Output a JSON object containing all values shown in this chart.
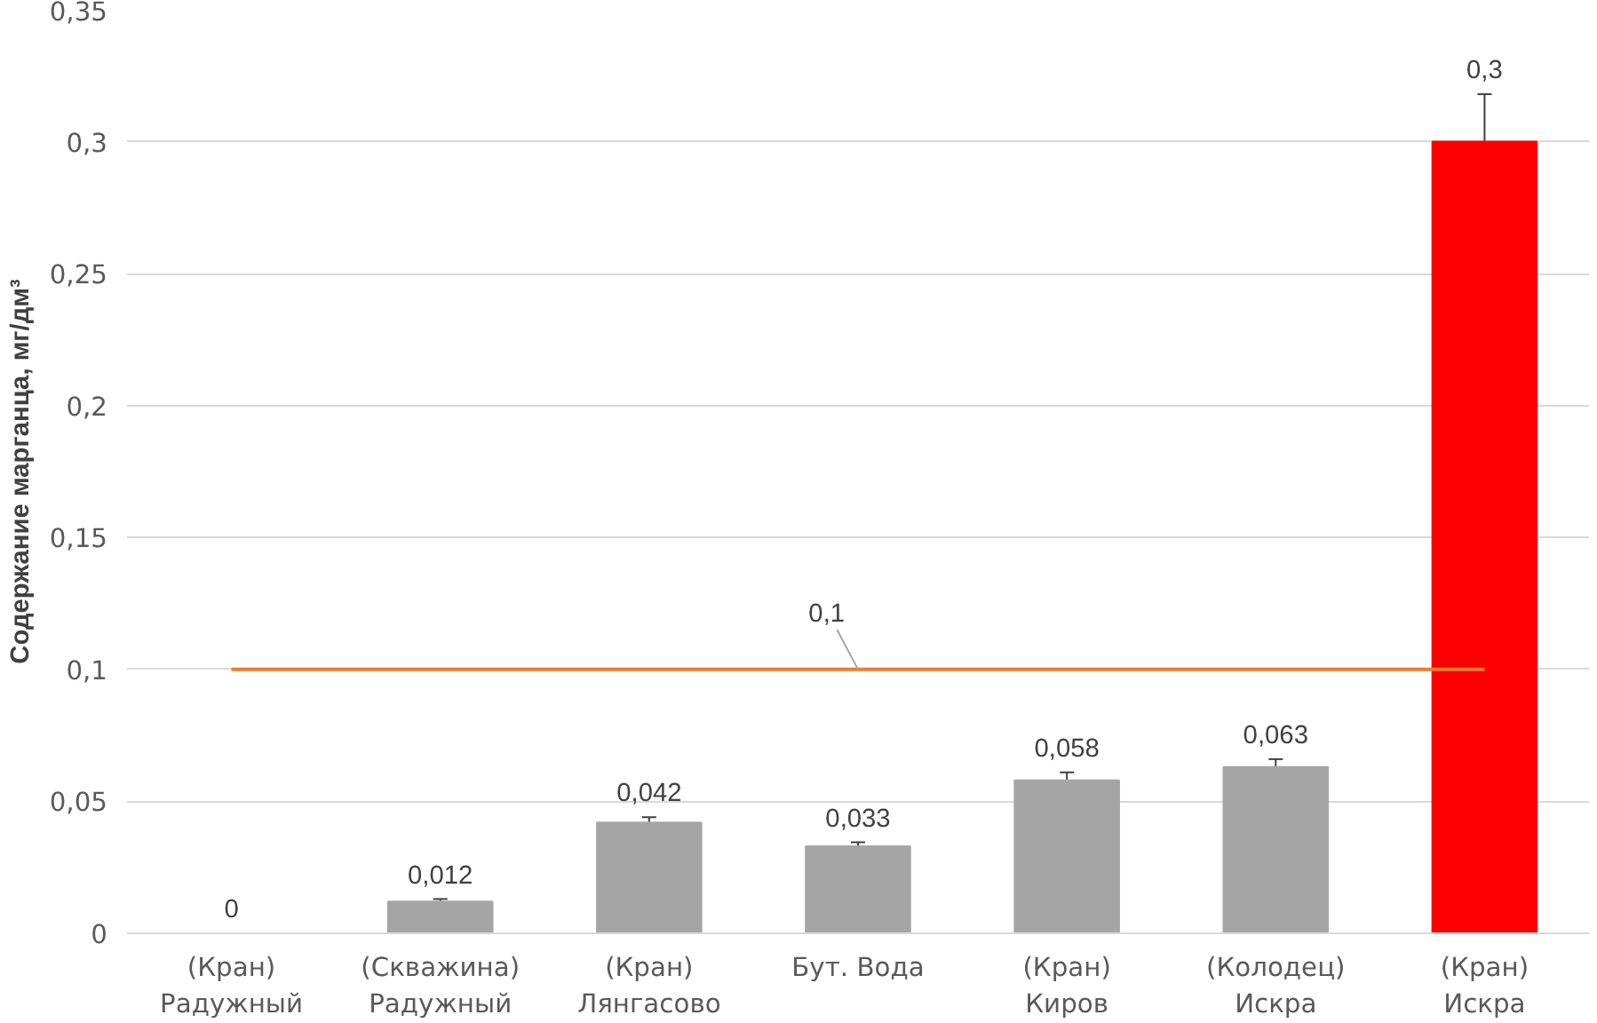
{
  "chart_data": {
    "type": "bar",
    "ylabel": "Содержание марганца, мг/дм³",
    "categories": [
      "(Кран)\nРадужный",
      "(Скважина)\nРадужный",
      "(Кран)\nЛянгасово",
      "Бут. Вода",
      "(Кран)\nКиров",
      "(Колодец)\nИскра",
      "(Кран)\nИскра"
    ],
    "values": [
      0,
      0.012,
      0.042,
      0.033,
      0.058,
      0.063,
      0.3
    ],
    "colors": [
      "#a5a5a5",
      "#a5a5a5",
      "#a5a5a5",
      "#a5a5a5",
      "#a5a5a5",
      "#a5a5a5",
      "#ff0000"
    ],
    "errors": [
      null,
      0.001,
      0.002,
      0.0015,
      0.003,
      0.003,
      0.018
    ],
    "value_labels": [
      "0",
      "0,012",
      "0,042",
      "0,033",
      "0,058",
      "0,063",
      "0,3"
    ],
    "ylim": [
      0,
      0.35
    ],
    "yticks": [
      {
        "value": 0,
        "label": "0"
      },
      {
        "value": 0.05,
        "label": "0,05"
      },
      {
        "value": 0.1,
        "label": "0,1"
      },
      {
        "value": 0.15,
        "label": "0,15"
      },
      {
        "value": 0.2,
        "label": "0,2"
      },
      {
        "value": 0.25,
        "label": "0,25"
      },
      {
        "value": 0.3,
        "label": "0,3"
      },
      {
        "value": 0.35,
        "label": "0,35"
      }
    ],
    "ref_lines": [
      {
        "axis": "y",
        "value": 0.1,
        "label": "0,1",
        "color": "#ed7d31"
      }
    ],
    "grid": "y"
  }
}
